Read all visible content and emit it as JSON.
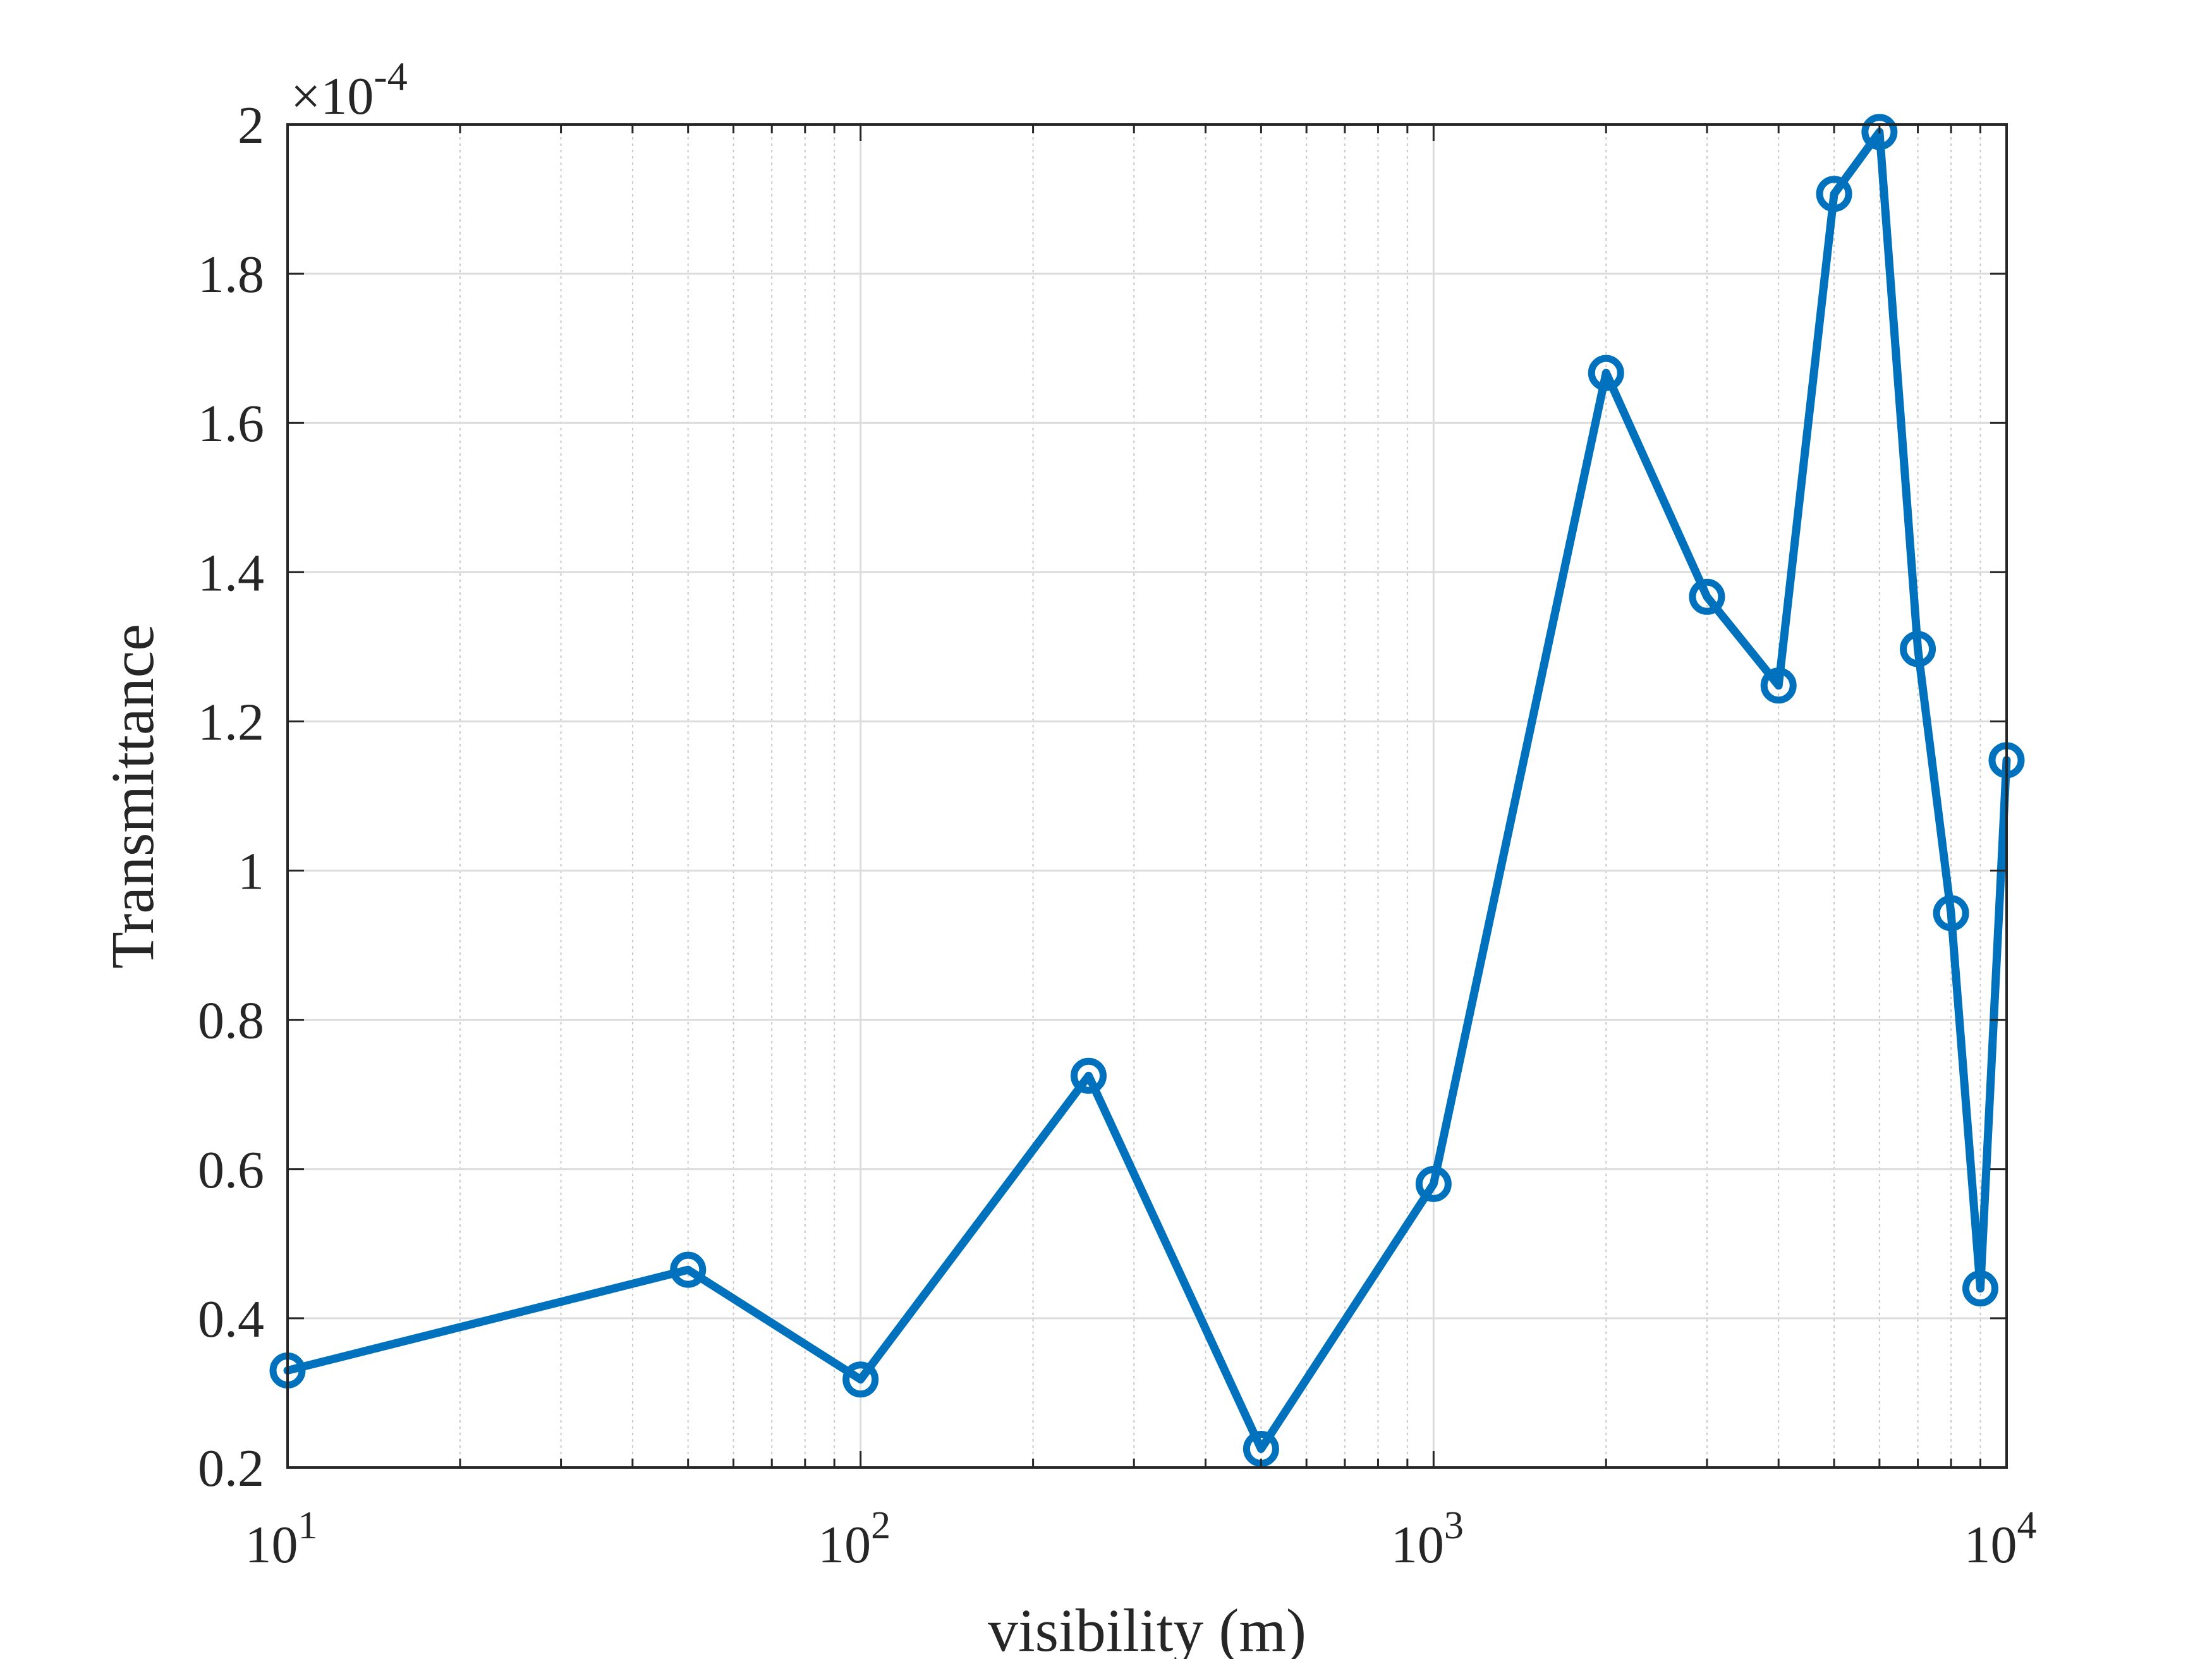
{
  "chart_data": {
    "type": "line",
    "title": "",
    "xlabel": "visibility (m)",
    "ylabel": "Transmittance",
    "xscale": "log",
    "xlim": [
      10,
      10000
    ],
    "ylim": [
      0.2,
      2.0
    ],
    "y_multiplier_label": "×10",
    "y_multiplier_exponent": "-4",
    "x_ticks": [
      {
        "value": 10,
        "base": "10",
        "exp": "1"
      },
      {
        "value": 100,
        "base": "10",
        "exp": "2"
      },
      {
        "value": 1000,
        "base": "10",
        "exp": "3"
      },
      {
        "value": 10000,
        "base": "10",
        "exp": "4"
      }
    ],
    "y_ticks": [
      {
        "value": 0.2,
        "label": "0.2"
      },
      {
        "value": 0.4,
        "label": "0.4"
      },
      {
        "value": 0.6,
        "label": "0.6"
      },
      {
        "value": 0.8,
        "label": "0.8"
      },
      {
        "value": 1.0,
        "label": "1"
      },
      {
        "value": 1.2,
        "label": "1.2"
      },
      {
        "value": 1.4,
        "label": "1.4"
      },
      {
        "value": 1.6,
        "label": "1.6"
      },
      {
        "value": 1.8,
        "label": "1.8"
      },
      {
        "value": 2.0,
        "label": "2"
      }
    ],
    "grid": true,
    "minor_grid": true,
    "series": [
      {
        "color": "#0072BD",
        "marker": "circle",
        "x": [
          10,
          50,
          100,
          250,
          500,
          1000,
          2000,
          3000,
          4000,
          5000,
          6000,
          7000,
          8000,
          9000,
          10000
        ],
        "y": [
          0.33,
          0.465,
          0.318,
          0.725,
          0.225,
          0.58,
          1.667,
          1.367,
          1.248,
          1.907,
          1.99,
          1.297,
          0.943,
          0.44,
          1.148
        ]
      }
    ]
  }
}
